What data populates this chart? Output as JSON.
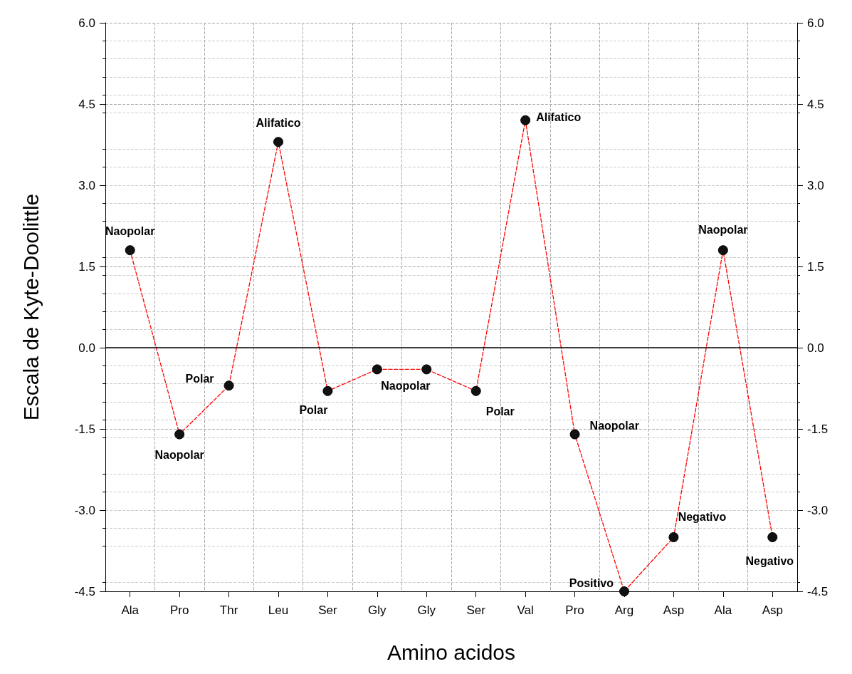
{
  "chart_data": {
    "type": "line",
    "xlabel": "Amino acidos",
    "ylabel": "Escala de Kyte-Doolittle",
    "categories": [
      "Ala",
      "Pro",
      "Thr",
      "Leu",
      "Ser",
      "Gly",
      "Gly",
      "Ser",
      "Val",
      "Pro",
      "Arg",
      "Asp",
      "Ala",
      "Asp"
    ],
    "series": [
      {
        "color": "#ff0000",
        "values": [
          1.8,
          -1.6,
          -0.7,
          3.8,
          -0.8,
          -0.4,
          -0.4,
          -0.8,
          4.2,
          -1.6,
          -4.5,
          -3.5,
          1.8,
          -3.5
        ],
        "value_labels": [
          "Naopolar",
          "Naopolar",
          "Polar",
          "Alifatico",
          "Polar",
          "Naopolar",
          null,
          "Polar",
          "Alifatico",
          "Naopolar",
          "Positivo",
          "Negativo",
          "Naopolar",
          "Negativo"
        ]
      }
    ],
    "marker": "circle",
    "line_style": "dashed",
    "grid": true,
    "ylim": [
      -4.5,
      6
    ],
    "yticks": [
      {
        "value": -4.5,
        "label": "-4.5"
      },
      {
        "value": -3,
        "label": "-3.0"
      },
      {
        "value": -1.5,
        "label": "-1.5"
      },
      {
        "value": 0,
        "label": "0.0"
      },
      {
        "value": 1.5,
        "label": "1.5"
      },
      {
        "value": 3,
        "label": "3.0"
      },
      {
        "value": 4.5,
        "label": "4.5"
      },
      {
        "value": 6,
        "label": "6.0"
      }
    ],
    "y2lim": [
      -4.5,
      6
    ],
    "y2ticks": [
      {
        "value": -4.5,
        "label": "-4.5"
      },
      {
        "value": -3,
        "label": "-3.0"
      },
      {
        "value": -1.5,
        "label": "-1.5"
      },
      {
        "value": 0,
        "label": "0.0"
      },
      {
        "value": 1.5,
        "label": "1.5"
      },
      {
        "value": 3,
        "label": "3.0"
      },
      {
        "value": 4.5,
        "label": "4.5"
      },
      {
        "value": 6,
        "label": "6.0"
      }
    ],
    "ref_lines": [
      {
        "axis": "y",
        "value": 0,
        "color": "#000000",
        "line_style": "solid"
      }
    ]
  }
}
